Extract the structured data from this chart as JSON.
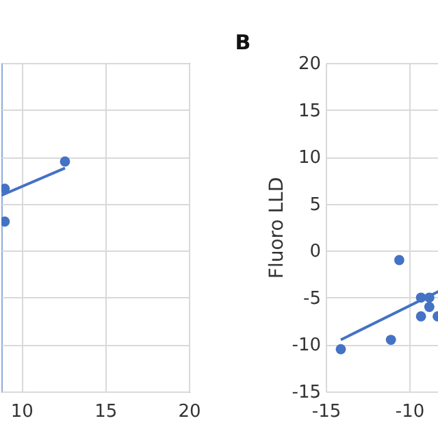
{
  "chart_data": [
    {
      "type": "scatter",
      "xlim": [
        8.8,
        20
      ],
      "xticks": [
        10,
        15,
        20
      ],
      "ylim": [
        -15,
        20
      ],
      "yticks": [
        -15,
        -10,
        -5,
        0,
        5,
        10,
        15,
        20
      ],
      "grid": true,
      "tick_labels": "x",
      "series": [
        {
          "color": "#4472c4",
          "marker": "circle",
          "x": [
            12.6,
            9.0,
            9.0
          ],
          "values": [
            9.5,
            6.6,
            3.1
          ]
        },
        {
          "type": "line",
          "color": "#4472c4",
          "marker": "none",
          "x": [
            8.8,
            12.6
          ],
          "values": [
            5.9,
            8.8
          ]
        }
      ]
    },
    {
      "type": "scatter",
      "title": "B",
      "ylabel": "Fluoro LLD",
      "xlim": [
        -15,
        -8.2
      ],
      "xticks": [
        -15,
        -10
      ],
      "ylim": [
        -15,
        20
      ],
      "yticks": [
        -15,
        -10,
        -5,
        0,
        5,
        10,
        15,
        20
      ],
      "grid": true,
      "series": [
        {
          "color": "#4472c4",
          "marker": "circle",
          "x": [
            -14.1,
            -11.1,
            -10.6,
            -9.3,
            -8.8,
            -8.8,
            -9.3,
            -8.3
          ],
          "values": [
            -10.5,
            -9.5,
            -1,
            -5,
            -5,
            -6,
            -7,
            -7
          ]
        },
        {
          "type": "line",
          "color": "#4472c4",
          "marker": "none",
          "x": [
            -14.1,
            -8.2
          ],
          "values": [
            -9.5,
            -4.3
          ]
        }
      ]
    }
  ]
}
